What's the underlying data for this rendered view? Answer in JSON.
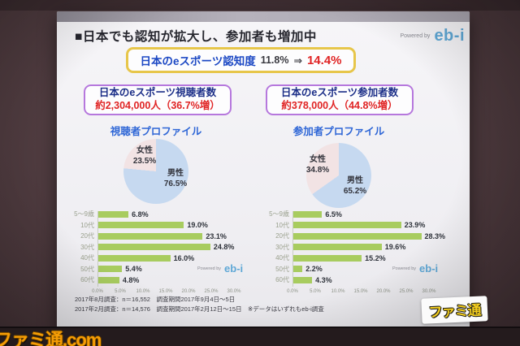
{
  "photo": {
    "watermark": "ファミ通.com"
  },
  "colors": {
    "bar_green": "#a8cc5f",
    "pie_female_pink": "#f2e3e4",
    "pie_male_blue": "#c6d9f0",
    "accent_red": "#e02424",
    "accent_blue": "#1d49c4",
    "purple_border": "#b678dd",
    "yellow_border": "#e7c64a",
    "brand_blue": "#5fa8d6"
  },
  "slide": {
    "title": "■日本でも認知が拡大し、参加者も増加中",
    "powered_by": {
      "label": "Powered by",
      "brand": "eb-i"
    },
    "awareness": {
      "label": "日本のeスポーツ認知度",
      "from": "11.8%",
      "arrow": "⇒",
      "to": "14.4%"
    },
    "viewer_box": {
      "title": "日本のeスポーツ視聴者数",
      "value": "約2,304,000人（36.7%増）"
    },
    "participant_box": {
      "title": "日本のeスポーツ参加者数",
      "value": "約378,000人（44.8%増）"
    },
    "viewer_profile_title": "視聴者プロファイル",
    "participant_profile_title": "参加者プロファイル",
    "footnotes": [
      "2017年8月調査：n＝16,552　調査期間2017年9月4日～5日",
      "2017年2月調査：n＝14,576　調査期間2017年2月12日～15日　※データはいずれもeb-i調査"
    ],
    "famitsu_logo": "ファミ通"
  },
  "chart_data": [
    {
      "type": "pie",
      "title": "視聴者プロファイル",
      "labels": [
        "女性",
        "男性"
      ],
      "values": [
        23.5,
        76.5
      ],
      "value_labels": [
        "23.5%",
        "76.5%"
      ],
      "colors": [
        "#f2e3e4",
        "#c6d9f0"
      ],
      "layout": "male slice first clockwise from top"
    },
    {
      "type": "pie",
      "title": "参加者プロファイル",
      "labels": [
        "女性",
        "男性"
      ],
      "values": [
        34.8,
        65.2
      ],
      "value_labels": [
        "34.8%",
        "65.2%"
      ],
      "colors": [
        "#f2e3e4",
        "#c6d9f0"
      ],
      "layout": "male slice first clockwise from top"
    },
    {
      "type": "bar",
      "title": "視聴者 年代別構成",
      "categories": [
        "5～9歳",
        "10代",
        "20代",
        "30代",
        "40代",
        "50代",
        "60代"
      ],
      "values": [
        6.8,
        19.0,
        23.1,
        24.8,
        16.0,
        5.4,
        4.8
      ],
      "value_labels": [
        "6.8%",
        "19.0%",
        "23.1%",
        "24.8%",
        "16.0%",
        "5.4%",
        "4.8%"
      ],
      "xlim": [
        0,
        30
      ],
      "xticks": [
        "0.0%",
        "5.0%",
        "10.0%",
        "15.0%",
        "20.0%",
        "25.0%",
        "30.0%"
      ],
      "bar_color": "#a8cc5f",
      "orientation": "horizontal",
      "grid": false
    },
    {
      "type": "bar",
      "title": "参加者 年代別構成",
      "categories": [
        "5～9歳",
        "10代",
        "20代",
        "30代",
        "40代",
        "50代",
        "60代"
      ],
      "values": [
        6.5,
        23.9,
        28.3,
        19.6,
        15.2,
        2.2,
        4.3
      ],
      "value_labels": [
        "6.5%",
        "23.9%",
        "28.3%",
        "19.6%",
        "15.2%",
        "2.2%",
        "4.3%"
      ],
      "xlim": [
        0,
        30
      ],
      "xticks": [
        "0.0%",
        "5.0%",
        "10.0%",
        "15.0%",
        "20.0%",
        "25.0%",
        "30.0%"
      ],
      "bar_color": "#a8cc5f",
      "orientation": "horizontal",
      "grid": false
    }
  ]
}
